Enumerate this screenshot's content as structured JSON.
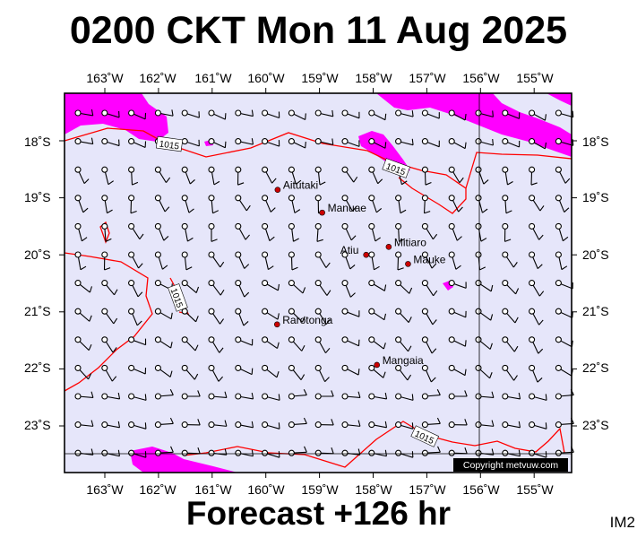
{
  "title": "0200 CKT Mon 11 Aug 2025",
  "forecast": "Forecast +126 hr",
  "corner_label": "IM2",
  "copyright": "Copyright metvuw.com",
  "lon_labels": [
    "163˚W",
    "162˚W",
    "161˚W",
    "160˚W",
    "159˚W",
    "158˚W",
    "157˚W",
    "156˚W",
    "155˚W"
  ],
  "lat_labels": [
    "18˚S",
    "19˚S",
    "20˚S",
    "21˚S",
    "22˚S",
    "23˚S"
  ],
  "places": [
    {
      "name": "Aitutaki",
      "lon": -159.78,
      "lat": -18.86
    },
    {
      "name": "Manuae",
      "lon": -158.95,
      "lat": -19.26
    },
    {
      "name": "Mitiaro",
      "lon": -157.71,
      "lat": -19.86
    },
    {
      "name": "Atiu",
      "lon": -158.13,
      "lat": -20.0
    },
    {
      "name": "Mauke",
      "lon": -157.35,
      "lat": -20.16
    },
    {
      "name": "Rarotonga",
      "lon": -159.79,
      "lat": -21.22
    },
    {
      "name": "Mangaia",
      "lon": -157.93,
      "lat": -21.93
    }
  ],
  "isobar_labels": [
    "1015",
    "1015",
    "1015",
    "1015"
  ],
  "colors": {
    "ocean": "#e6e6fa",
    "precip": "#ff00ff",
    "isobar": "#ff0000",
    "land_dot": "#cc0000"
  }
}
